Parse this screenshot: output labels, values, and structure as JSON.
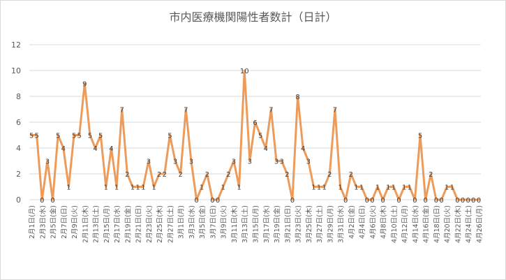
{
  "chart_data": {
    "type": "line",
    "title": "市内医療機関陽性者数計（日計）",
    "ylim": [
      0,
      12
    ],
    "yticks": [
      0,
      2,
      4,
      6,
      8,
      10,
      12
    ],
    "grid": true,
    "color": "#ED9B5A",
    "x": [
      "2月1日(月)",
      "2月2日(火)",
      "2月3日(水)",
      "2月4日(木)",
      "2月5日(金)",
      "2月6日(土)",
      "2月7日(日)",
      "2月8日(月)",
      "2月9日(火)",
      "2月10日(水)",
      "2月11日(木)",
      "2月12日(金)",
      "2月13日(土)",
      "2月14日(日)",
      "2月15日(月)",
      "2月16日(火)",
      "2月17日(水)",
      "2月18日(木)",
      "2月19日(金)",
      "2月20日(土)",
      "2月21日(日)",
      "2月22日(月)",
      "2月23日(火)",
      "2月24日(水)",
      "2月25日(木)",
      "2月26日(金)",
      "2月27日(土)",
      "2月28日(日)",
      "3月1日(月)",
      "3月2日(火)",
      "3月3日(水)",
      "3月4日(木)",
      "3月5日(金)",
      "3月6日(土)",
      "3月7日(日)",
      "3月8日(月)",
      "3月9日(火)",
      "3月10日(水)",
      "3月11日(木)",
      "3月12日(金)",
      "3月13日(土)",
      "3月14日(日)",
      "3月15日(月)",
      "3月16日(火)",
      "3月17日(水)",
      "3月18日(木)",
      "3月19日(金)",
      "3月20日(土)",
      "3月21日(日)",
      "3月22日(月)",
      "3月23日(火)",
      "3月24日(水)",
      "3月25日(木)",
      "3月26日(金)",
      "3月27日(土)",
      "3月28日(日)",
      "3月29日(月)",
      "3月30日(火)",
      "3月31日(水)",
      "4月1日(木)",
      "4月2日(金)",
      "4月3日(土)",
      "4月4日(日)",
      "4月5日(月)",
      "4月6日(火)",
      "4月7日(水)",
      "4月8日(木)",
      "4月9日(金)",
      "4月10日(土)",
      "4月11日(日)",
      "4月12日(月)",
      "4月13日(火)",
      "4月14日(水)",
      "4月15日(木)",
      "4月16日(金)",
      "4月17日(土)",
      "4月18日(日)",
      "4月19日(月)",
      "4月20日(火)",
      "4月21日(水)",
      "4月22日(木)",
      "4月23日(金)",
      "4月24日(土)",
      "4月25日(日)",
      "4月26日(月)"
    ],
    "tick_labels": [
      "2月1日(月)",
      "2月3日(水)",
      "2月5日(金)",
      "2月7日(日)",
      "2月9日(火)",
      "2月11日(木)",
      "2月13日(土)",
      "2月15日(月)",
      "2月17日(水)",
      "2月19日(金)",
      "2月21日(日)",
      "2月23日(火)",
      "2月25日(木)",
      "2月27日(土)",
      "3月1日(月)",
      "3月3日(水)",
      "3月5日(金)",
      "3月7日(日)",
      "3月9日(火)",
      "3月11日(木)",
      "3月13日(土)",
      "3月15日(月)",
      "3月17日(水)",
      "3月19日(金)",
      "3月21日(日)",
      "3月23日(火)",
      "3月25日(木)",
      "3月27日(土)",
      "3月29日(月)",
      "3月31日(水)",
      "4月2日(金)",
      "4月4日(日)",
      "4月6日(火)",
      "4月8日(木)",
      "4月10日(土)",
      "4月12日(月)",
      "4月14日(水)",
      "4月16日(金)",
      "4月18日(日)",
      "4月20日(火)",
      "4月22日(木)",
      "4月24日(土)",
      "4月26日(月)"
    ],
    "values": [
      5,
      5,
      0,
      3,
      0,
      5,
      4,
      1,
      5,
      5,
      9,
      5,
      4,
      5,
      1,
      4,
      1,
      7,
      2,
      1,
      1,
      1,
      3,
      1,
      2,
      2,
      5,
      3,
      2,
      7,
      3,
      0,
      1,
      2,
      0,
      0,
      1,
      2,
      3,
      1,
      10,
      3,
      6,
      5,
      4,
      7,
      3,
      3,
      2,
      0,
      8,
      4,
      3,
      1,
      1,
      1,
      2,
      7,
      1,
      0,
      2,
      1,
      1,
      0,
      0,
      1,
      0,
      1,
      1,
      0,
      1,
      1,
      0,
      5,
      0,
      2,
      0,
      0,
      1,
      1,
      0,
      0,
      0,
      0,
      0
    ]
  }
}
